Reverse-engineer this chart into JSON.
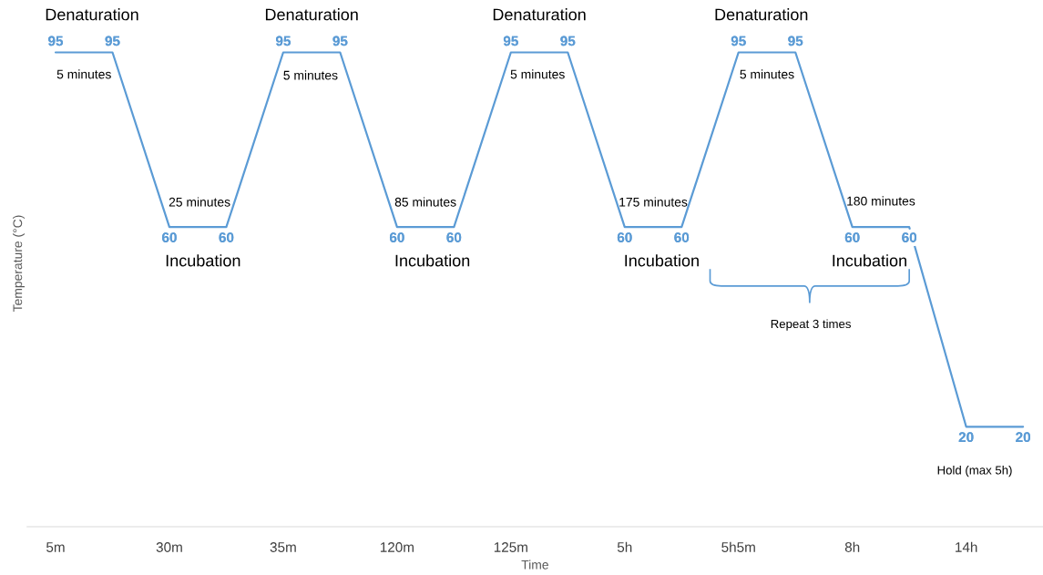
{
  "chart_data": {
    "type": "line",
    "xlabel": "Time",
    "ylabel": "Temperature (°C)",
    "categories": [
      "5m",
      null,
      "30m",
      null,
      "35m",
      null,
      "120m",
      null,
      "125m",
      null,
      "5h",
      null,
      "5h5m",
      null,
      "8h",
      null,
      "14h",
      null
    ],
    "series": [
      {
        "color": "#5b9bd5",
        "values": [
          95,
          95,
          60,
          60,
          95,
          95,
          60,
          60,
          95,
          95,
          60,
          60,
          95,
          95,
          60,
          60,
          20,
          20
        ]
      }
    ],
    "data_labels": true,
    "grid": false,
    "legend": false,
    "line_style": "solid",
    "annotations": [
      "Denaturation",
      "Denaturation",
      "Denaturation",
      "Denaturation",
      "5 minutes",
      "5 minutes",
      "5 minutes",
      "5 minutes",
      "25 minutes",
      "85 minutes",
      "175 minutes",
      "180 minutes",
      "Incubation",
      "Incubation",
      "Incubation",
      "Incubation",
      "Repeat 3 times",
      "Hold (max 5h)"
    ]
  }
}
